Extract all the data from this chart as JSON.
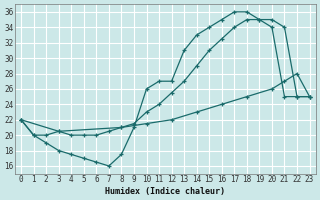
{
  "xlabel": "Humidex (Indice chaleur)",
  "bg_color": "#cce8e8",
  "grid_color": "#ffffff",
  "line_color": "#1a6b6b",
  "xlim": [
    -0.5,
    23.5
  ],
  "ylim": [
    15,
    37
  ],
  "xticks": [
    0,
    1,
    2,
    3,
    4,
    5,
    6,
    7,
    8,
    9,
    10,
    11,
    12,
    13,
    14,
    15,
    16,
    17,
    18,
    19,
    20,
    21,
    22,
    23
  ],
  "yticks": [
    16,
    18,
    20,
    22,
    24,
    26,
    28,
    30,
    32,
    34,
    36
  ],
  "line1_x": [
    0,
    1,
    2,
    3,
    4,
    5,
    6,
    7,
    8,
    9,
    10,
    11,
    12,
    13,
    14,
    15,
    16,
    17,
    18,
    19,
    20,
    21,
    22,
    23
  ],
  "line1_y": [
    22,
    20,
    19,
    18,
    17.5,
    17,
    16.5,
    16,
    17.5,
    21,
    26,
    27,
    27,
    31,
    33,
    34,
    35,
    36,
    36,
    35,
    34,
    25,
    25,
    25
  ],
  "line2_x": [
    0,
    1,
    2,
    3,
    4,
    5,
    6,
    7,
    8,
    9,
    10,
    11,
    12,
    13,
    14,
    15,
    16,
    17,
    18,
    19,
    20,
    21,
    22,
    23
  ],
  "line2_y": [
    22,
    20,
    20,
    20.5,
    20,
    20,
    20,
    20.5,
    21,
    21.5,
    23,
    24,
    25.5,
    27,
    29,
    31,
    32.5,
    34,
    35,
    35,
    35,
    34,
    25,
    25
  ],
  "line3_x": [
    0,
    3,
    8,
    10,
    12,
    14,
    16,
    18,
    20,
    21,
    22,
    23
  ],
  "line3_y": [
    22,
    20.5,
    21,
    21.5,
    22,
    23,
    24,
    25,
    26,
    27,
    28,
    25
  ]
}
